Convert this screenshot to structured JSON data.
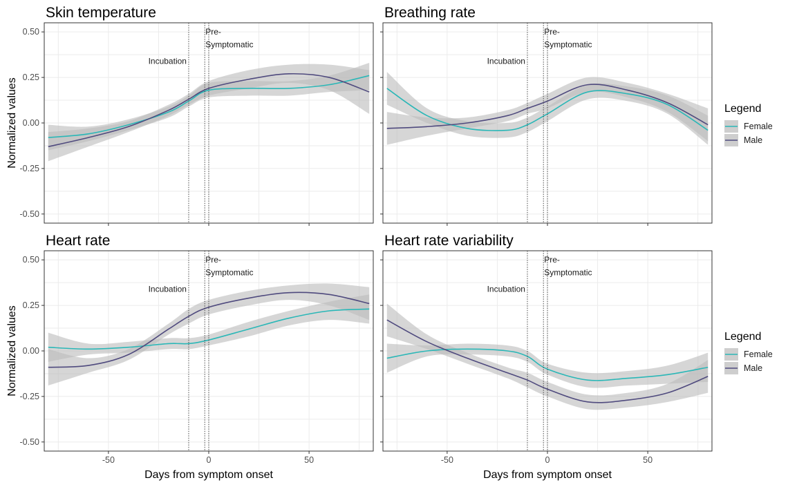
{
  "chart_data": [
    {
      "type": "line",
      "title": "Skin temperature",
      "xlim": [
        -82,
        82
      ],
      "ylim": [
        -0.55,
        0.55
      ],
      "x_ticks": [
        -50,
        0,
        50
      ],
      "y_ticks": [
        -0.5,
        -0.25,
        0.0,
        0.25,
        0.5
      ],
      "y_tick_labels": [
        "-0.50",
        "-0.25",
        "0.00",
        "0.25",
        "0.50"
      ],
      "x_tick_labels": [
        "-50",
        "0",
        "50"
      ],
      "ylabel": "Normalized values",
      "xlabel": "",
      "vlines": [
        -10,
        -2,
        0
      ],
      "annotations": [
        {
          "text": "Incubation",
          "x": -10,
          "y": 0.325
        },
        {
          "text": "Pre-",
          "x": -2,
          "y": 0.485
        },
        {
          "text": "Symptomatic",
          "x": -2,
          "y": 0.415
        }
      ],
      "grid": true,
      "x": [
        -80,
        -60,
        -40,
        -20,
        -10,
        0,
        20,
        40,
        60,
        80
      ],
      "series": [
        {
          "name": "Female",
          "color": "#2ab7b7",
          "values": [
            -0.08,
            -0.06,
            -0.01,
            0.06,
            0.12,
            0.18,
            0.19,
            0.19,
            0.21,
            0.26
          ],
          "lower": [
            -0.15,
            -0.1,
            -0.04,
            0.03,
            0.09,
            0.14,
            0.15,
            0.15,
            0.17,
            0.18
          ],
          "upper": [
            -0.01,
            -0.02,
            0.02,
            0.09,
            0.15,
            0.22,
            0.23,
            0.23,
            0.26,
            0.33
          ]
        },
        {
          "name": "Male",
          "color": "#4f4a7e",
          "values": [
            -0.13,
            -0.08,
            -0.02,
            0.07,
            0.13,
            0.19,
            0.24,
            0.27,
            0.25,
            0.17
          ],
          "lower": [
            -0.21,
            -0.13,
            -0.05,
            0.04,
            0.1,
            0.15,
            0.19,
            0.22,
            0.18,
            0.05
          ],
          "upper": [
            -0.05,
            -0.03,
            0.01,
            0.1,
            0.16,
            0.23,
            0.29,
            0.32,
            0.32,
            0.29
          ]
        }
      ]
    },
    {
      "type": "line",
      "title": "Breathing rate",
      "xlim": [
        -82,
        82
      ],
      "ylim": [
        -0.55,
        0.55
      ],
      "x_ticks": [
        -50,
        0,
        50
      ],
      "y_ticks": [
        -0.5,
        -0.25,
        0.0,
        0.25,
        0.5
      ],
      "x_tick_labels": [
        "-50",
        "0",
        "50"
      ],
      "y_tick_labels": [
        "-0.50",
        "-0.25",
        "0.00",
        "0.25",
        "0.50"
      ],
      "ylabel": "",
      "xlabel": "",
      "vlines": [
        -10,
        -2,
        0
      ],
      "annotations": [
        {
          "text": "Incubation",
          "x": -10,
          "y": 0.325
        },
        {
          "text": "Pre-",
          "x": -2,
          "y": 0.485
        },
        {
          "text": "Symptomatic",
          "x": -2,
          "y": 0.415
        }
      ],
      "grid": true,
      "x": [
        -80,
        -60,
        -40,
        -20,
        -10,
        0,
        20,
        40,
        60,
        80
      ],
      "series": [
        {
          "name": "Female",
          "color": "#2ab7b7",
          "values": [
            0.19,
            0.04,
            -0.03,
            -0.04,
            -0.01,
            0.05,
            0.17,
            0.16,
            0.1,
            -0.04
          ],
          "lower": [
            0.1,
            0.0,
            -0.07,
            -0.08,
            -0.05,
            0.01,
            0.13,
            0.12,
            0.05,
            -0.12
          ],
          "upper": [
            0.28,
            0.08,
            0.01,
            0.0,
            0.03,
            0.09,
            0.21,
            0.2,
            0.15,
            0.04
          ]
        },
        {
          "name": "Male",
          "color": "#4f4a7e",
          "values": [
            -0.03,
            -0.02,
            0.0,
            0.04,
            0.08,
            0.12,
            0.21,
            0.18,
            0.11,
            -0.01
          ],
          "lower": [
            -0.12,
            -0.07,
            -0.03,
            0.01,
            0.05,
            0.08,
            0.17,
            0.14,
            0.06,
            -0.1
          ],
          "upper": [
            0.06,
            0.03,
            0.03,
            0.07,
            0.11,
            0.16,
            0.25,
            0.22,
            0.16,
            0.08
          ]
        }
      ]
    },
    {
      "type": "line",
      "title": "Heart rate",
      "xlim": [
        -82,
        82
      ],
      "ylim": [
        -0.55,
        0.55
      ],
      "x_ticks": [
        -50,
        0,
        50
      ],
      "y_ticks": [
        -0.5,
        -0.25,
        0.0,
        0.25,
        0.5
      ],
      "x_tick_labels": [
        "-50",
        "0",
        "50"
      ],
      "y_tick_labels": [
        "-0.50",
        "-0.25",
        "0.00",
        "0.25",
        "0.50"
      ],
      "ylabel": "Normalized values",
      "xlabel": "Days from symptom onset",
      "vlines": [
        -10,
        -2,
        0
      ],
      "annotations": [
        {
          "text": "Incubation",
          "x": -10,
          "y": 0.325
        },
        {
          "text": "Pre-",
          "x": -2,
          "y": 0.485
        },
        {
          "text": "Symptomatic",
          "x": -2,
          "y": 0.415
        }
      ],
      "grid": true,
      "x": [
        -80,
        -60,
        -40,
        -20,
        -10,
        0,
        20,
        40,
        60,
        80
      ],
      "series": [
        {
          "name": "Female",
          "color": "#2ab7b7",
          "values": [
            0.02,
            0.01,
            0.02,
            0.04,
            0.04,
            0.06,
            0.12,
            0.18,
            0.22,
            0.23
          ],
          "lower": [
            -0.06,
            -0.02,
            -0.01,
            0.01,
            0.01,
            0.03,
            0.08,
            0.14,
            0.17,
            0.15
          ],
          "upper": [
            0.1,
            0.04,
            0.05,
            0.07,
            0.07,
            0.09,
            0.16,
            0.22,
            0.27,
            0.31
          ]
        },
        {
          "name": "Male",
          "color": "#4f4a7e",
          "values": [
            -0.09,
            -0.08,
            -0.02,
            0.12,
            0.19,
            0.24,
            0.29,
            0.32,
            0.31,
            0.26
          ],
          "lower": [
            -0.19,
            -0.12,
            -0.05,
            0.09,
            0.15,
            0.2,
            0.25,
            0.28,
            0.25,
            0.17
          ],
          "upper": [
            0.01,
            -0.04,
            0.01,
            0.15,
            0.23,
            0.28,
            0.33,
            0.36,
            0.37,
            0.35
          ]
        }
      ]
    },
    {
      "type": "line",
      "title": "Heart rate variability",
      "xlim": [
        -82,
        82
      ],
      "ylim": [
        -0.55,
        0.55
      ],
      "x_ticks": [
        -50,
        0,
        50
      ],
      "y_ticks": [
        -0.5,
        -0.25,
        0.0,
        0.25,
        0.5
      ],
      "x_tick_labels": [
        "-50",
        "0",
        "50"
      ],
      "y_tick_labels": [
        "-0.50",
        "-0.25",
        "0.00",
        "0.25",
        "0.50"
      ],
      "ylabel": "",
      "xlabel": "Days from symptom onset",
      "vlines": [
        -10,
        -2,
        0
      ],
      "annotations": [
        {
          "text": "Incubation",
          "x": -10,
          "y": 0.325
        },
        {
          "text": "Pre-",
          "x": -2,
          "y": 0.485
        },
        {
          "text": "Symptomatic",
          "x": -2,
          "y": 0.415
        }
      ],
      "grid": true,
      "x": [
        -80,
        -60,
        -40,
        -20,
        -10,
        0,
        20,
        40,
        60,
        80
      ],
      "series": [
        {
          "name": "Female",
          "color": "#2ab7b7",
          "values": [
            -0.04,
            0.0,
            0.01,
            0.0,
            -0.03,
            -0.1,
            -0.16,
            -0.15,
            -0.13,
            -0.09
          ],
          "lower": [
            -0.12,
            -0.03,
            -0.02,
            -0.03,
            -0.06,
            -0.13,
            -0.2,
            -0.19,
            -0.18,
            -0.17
          ],
          "upper": [
            0.04,
            0.03,
            0.04,
            0.03,
            0.0,
            -0.07,
            -0.12,
            -0.11,
            -0.08,
            -0.01
          ]
        },
        {
          "name": "Male",
          "color": "#4f4a7e",
          "values": [
            0.17,
            0.05,
            -0.04,
            -0.12,
            -0.16,
            -0.21,
            -0.28,
            -0.27,
            -0.23,
            -0.14
          ],
          "lower": [
            0.08,
            0.01,
            -0.07,
            -0.15,
            -0.2,
            -0.25,
            -0.32,
            -0.31,
            -0.28,
            -0.23
          ],
          "upper": [
            0.26,
            0.09,
            -0.01,
            -0.09,
            -0.12,
            -0.17,
            -0.24,
            -0.23,
            -0.18,
            -0.05
          ]
        }
      ]
    }
  ],
  "legends": [
    {
      "title": "Legend",
      "entries": [
        {
          "label": "Female",
          "color": "#2ab7b7"
        },
        {
          "label": "Male",
          "color": "#4f4a7e"
        }
      ]
    },
    {
      "title": "Legend",
      "entries": [
        {
          "label": "Female",
          "color": "#2ab7b7"
        },
        {
          "label": "Male",
          "color": "#4f4a7e"
        }
      ]
    }
  ],
  "style": {
    "ribbon_color": "#bdbdbd",
    "grid_color": "#ebebeb",
    "panel_border_color": "#333333",
    "vline_color": "#333333"
  }
}
